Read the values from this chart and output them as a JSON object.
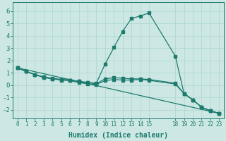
{
  "xlabel": "Humidex (Indice chaleur)",
  "bg_color": "#cde8e4",
  "grid_color": "#b0d8d2",
  "line_color": "#1e7a6e",
  "xlim": [
    -0.5,
    23.5
  ],
  "ylim": [
    -2.7,
    6.7
  ],
  "yticks": [
    -2,
    -1,
    0,
    1,
    2,
    3,
    4,
    5,
    6
  ],
  "xticks": [
    0,
    1,
    2,
    3,
    4,
    5,
    6,
    7,
    8,
    9,
    10,
    11,
    12,
    13,
    14,
    15,
    18,
    19,
    20,
    21,
    22,
    23
  ],
  "xtick_labels": [
    "0",
    "1",
    "2",
    "3",
    "4",
    "5",
    "6",
    "7",
    "8",
    "9",
    "10",
    "11",
    "12",
    "13",
    "14",
    "15",
    "18",
    "19",
    "20",
    "21",
    "22",
    "23"
  ],
  "series1_x": [
    0,
    1,
    2,
    3,
    4,
    5,
    6,
    7,
    8,
    9,
    10,
    11,
    12,
    13,
    14,
    15,
    18,
    19,
    20,
    21,
    22,
    23
  ],
  "series1_y": [
    1.4,
    1.1,
    0.85,
    0.65,
    0.55,
    0.45,
    0.4,
    0.3,
    0.2,
    0.15,
    1.7,
    3.05,
    4.35,
    5.4,
    5.6,
    5.85,
    2.35,
    -0.7,
    -1.2,
    -1.8,
    -2.1,
    -2.3
  ],
  "series2_x": [
    0,
    1,
    2,
    3,
    4,
    5,
    6,
    7,
    8,
    9,
    10,
    11,
    12,
    13,
    14,
    15,
    18,
    19,
    20,
    21,
    22,
    23
  ],
  "series2_y": [
    1.4,
    1.1,
    0.85,
    0.65,
    0.5,
    0.45,
    0.4,
    0.3,
    0.2,
    0.1,
    0.5,
    0.6,
    0.55,
    0.5,
    0.5,
    0.45,
    0.15,
    -0.7,
    -1.2,
    -1.8,
    -2.1,
    -2.3
  ],
  "series3_x": [
    0,
    1,
    2,
    3,
    4,
    5,
    6,
    7,
    8,
    9,
    10,
    11,
    12,
    13,
    14,
    15,
    18,
    19,
    20,
    21,
    22,
    23
  ],
  "series3_y": [
    1.4,
    1.1,
    0.85,
    0.6,
    0.5,
    0.4,
    0.35,
    0.2,
    0.1,
    0.05,
    0.35,
    0.45,
    0.4,
    0.4,
    0.45,
    0.38,
    0.08,
    -0.7,
    -1.2,
    -1.8,
    -2.1,
    -2.3
  ],
  "series4_x": [
    0,
    23
  ],
  "series4_y": [
    1.4,
    -2.3
  ],
  "tick_fontsize": 5.5,
  "label_fontsize": 7.0
}
